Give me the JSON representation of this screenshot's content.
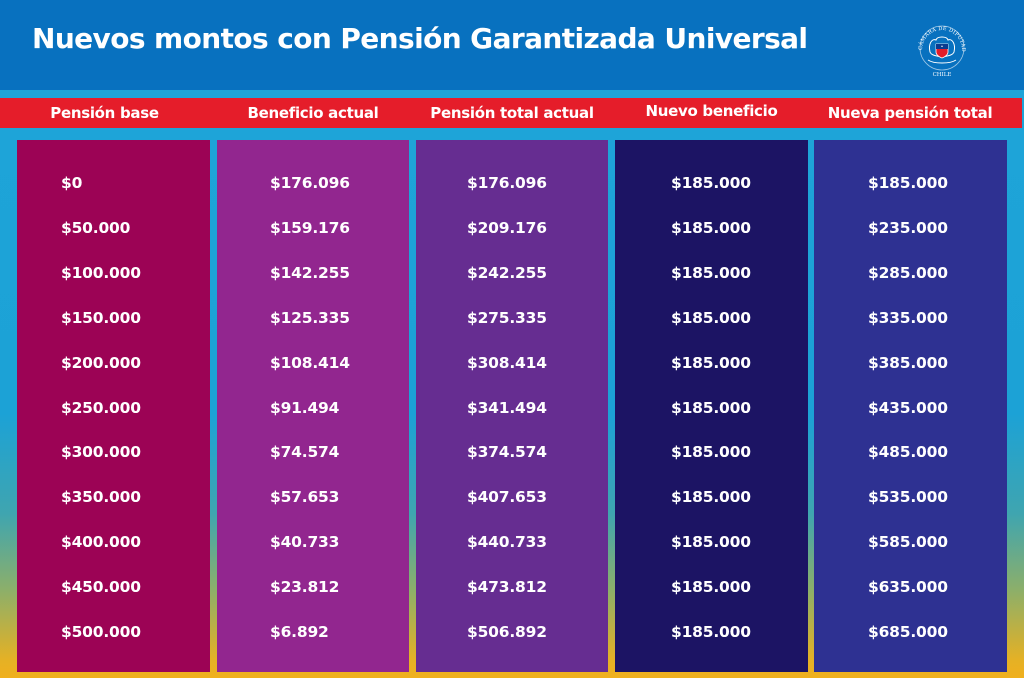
{
  "title": "Nuevos montos con Pensión Garantizada Universal",
  "logo": {
    "icon": "camara-de-diputadas-y-diputados-seal-icon",
    "ring_text": "CÁMARA DE DIPUTADAS Y DIPUTADOS",
    "bottom_text": "CHILE"
  },
  "colors": {
    "header_blue": "#0871bf",
    "header_bar_red": "#e51d2a",
    "col_pension_base": "#9c0355",
    "col_beneficio_actual": "#92268f",
    "col_pension_total_actual": "#662d91",
    "col_nuevo_beneficio": "#1c1464",
    "col_nueva_pension_total": "#2e3192",
    "gradient_top": "#1ea4d8",
    "gradient_bottom": "#f0b01e"
  },
  "table": {
    "columns": [
      {
        "label": "Pensión base"
      },
      {
        "label": "Beneficio actual"
      },
      {
        "label": "Pensión total actual"
      },
      {
        "label": "Nuevo beneficio"
      },
      {
        "label": "Nueva pensión total"
      }
    ],
    "rows": [
      [
        "$0",
        "$176.096",
        "$176.096",
        "$185.000",
        "$185.000"
      ],
      [
        "$50.000",
        "$159.176",
        "$209.176",
        "$185.000",
        "$235.000"
      ],
      [
        "$100.000",
        "$142.255",
        "$242.255",
        "$185.000",
        "$285.000"
      ],
      [
        "$150.000",
        "$125.335",
        "$275.335",
        "$185.000",
        "$335.000"
      ],
      [
        "$200.000",
        "$108.414",
        "$308.414",
        "$185.000",
        "$385.000"
      ],
      [
        "$250.000",
        "$91.494",
        "$341.494",
        "$185.000",
        "$435.000"
      ],
      [
        "$300.000",
        "$74.574",
        "$374.574",
        "$185.000",
        "$485.000"
      ],
      [
        "$350.000",
        "$57.653",
        "$407.653",
        "$185.000",
        "$535.000"
      ],
      [
        "$400.000",
        "$40.733",
        "$440.733",
        "$185.000",
        "$585.000"
      ],
      [
        "$450.000",
        "$23.812",
        "$473.812",
        "$185.000",
        "$635.000"
      ],
      [
        "$500.000",
        "$6.892",
        "$506.892",
        "$185.000",
        "$685.000"
      ]
    ]
  },
  "chart_data": {
    "type": "table",
    "title": "Nuevos montos con Pensión Garantizada Universal",
    "columns": [
      "Pensión base",
      "Beneficio actual",
      "Pensión total actual",
      "Nuevo beneficio",
      "Nueva pensión total"
    ],
    "rows": [
      [
        0,
        176096,
        176096,
        185000,
        185000
      ],
      [
        50000,
        159176,
        209176,
        185000,
        235000
      ],
      [
        100000,
        142255,
        242255,
        185000,
        285000
      ],
      [
        150000,
        125335,
        275335,
        185000,
        335000
      ],
      [
        200000,
        108414,
        308414,
        185000,
        385000
      ],
      [
        250000,
        91494,
        341494,
        185000,
        435000
      ],
      [
        300000,
        74574,
        374574,
        185000,
        485000
      ],
      [
        350000,
        57653,
        407653,
        185000,
        535000
      ],
      [
        400000,
        40733,
        440733,
        185000,
        585000
      ],
      [
        450000,
        23812,
        473812,
        185000,
        635000
      ],
      [
        500000,
        6892,
        506892,
        185000,
        685000
      ]
    ],
    "currency": "CLP"
  }
}
